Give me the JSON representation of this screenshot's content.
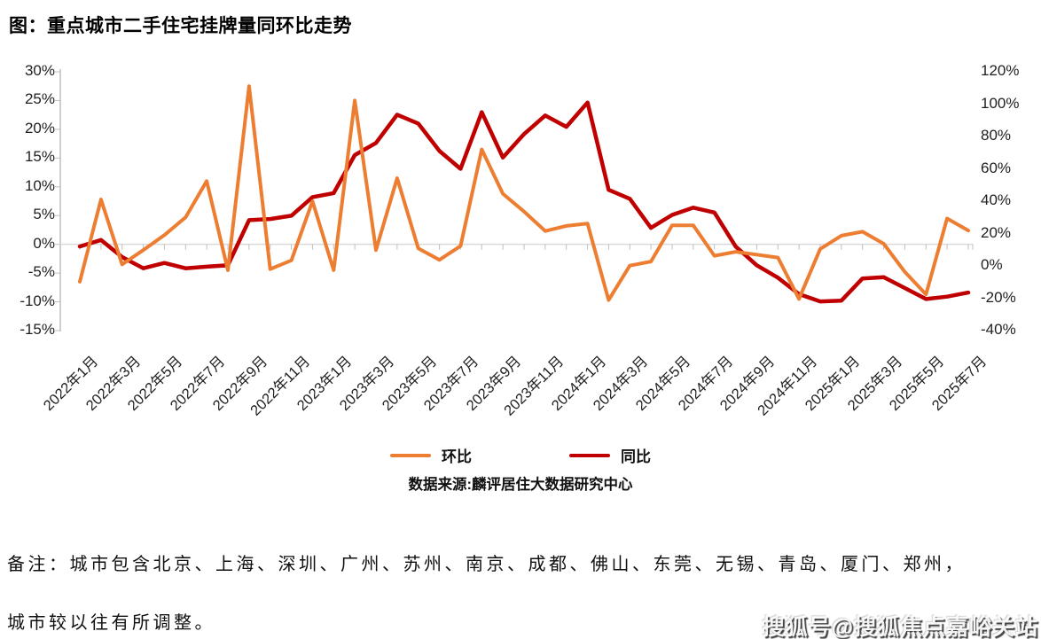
{
  "title": "图：重点城市二手住宅挂牌量同环比走势",
  "legend": [
    {
      "label": "环比",
      "color": "#ED7D31"
    },
    {
      "label": "同比",
      "color": "#C00000"
    }
  ],
  "source": "数据来源:麟评居住大数据研究中心",
  "note_line1": "备注：城市包含北京、上海、深圳、广州、苏州、南京、成都、佛山、东莞、无锡、青岛、厦门、郑州，",
  "note_line2": "城市较以往有所调整。",
  "watermark": "搜狐号@搜狐焦点嘉峪关站",
  "colors": {
    "mom_line": "#ED7D31",
    "yoy_line": "#C00000",
    "gridline": "#D9D9D9",
    "axis": "#BFBFBF",
    "text": "#1f1f1f"
  },
  "chart_data": {
    "type": "line",
    "title": "重点城市二手住宅挂牌量同环比走势",
    "x": [
      "2022年1月",
      "2022年2月",
      "2022年3月",
      "2022年4月",
      "2022年5月",
      "2022年6月",
      "2022年7月",
      "2022年8月",
      "2022年9月",
      "2022年10月",
      "2022年11月",
      "2022年12月",
      "2023年1月",
      "2023年2月",
      "2023年3月",
      "2023年4月",
      "2023年5月",
      "2023年6月",
      "2023年7月",
      "2023年8月",
      "2023年9月",
      "2023年10月",
      "2023年11月",
      "2023年12月",
      "2024年1月",
      "2024年2月",
      "2024年3月",
      "2024年4月",
      "2024年5月",
      "2024年6月",
      "2024年7月",
      "2024年8月",
      "2024年9月",
      "2024年10月",
      "2024年11月",
      "2024年12月",
      "2025年1月",
      "2025年2月",
      "2025年3月",
      "2025年4月",
      "2025年5月",
      "2025年6月",
      "2025年7月"
    ],
    "x_tick_labels": [
      "2022年1月",
      "2022年3月",
      "2022年5月",
      "2022年7月",
      "2022年9月",
      "2022年11月",
      "2023年1月",
      "2023年3月",
      "2023年5月",
      "2023年7月",
      "2023年9月",
      "2023年11月",
      "2024年1月",
      "2024年3月",
      "2024年5月",
      "2024年7月",
      "2024年9月",
      "2024年11月",
      "2025年1月",
      "2025年3月",
      "2025年5月",
      "2025年7月"
    ],
    "series": [
      {
        "name": "环比",
        "axis": "left",
        "color": "#ED7D31",
        "unit": "%",
        "values": [
          -6.5,
          7.8,
          -3.5,
          -1.0,
          1.6,
          4.7,
          11.0,
          -4.5,
          27.5,
          -4.3,
          -2.8,
          7.5,
          -4.5,
          25.0,
          -1.0,
          11.5,
          -0.7,
          -2.7,
          -0.3,
          16.5,
          8.8,
          5.7,
          2.3,
          3.2,
          3.6,
          -9.7,
          -3.7,
          -3.0,
          3.3,
          3.3,
          -2.0,
          -1.3,
          -1.8,
          -2.3,
          -9.5,
          -0.8,
          1.5,
          2.2,
          0.1,
          -4.8,
          -8.7,
          4.5,
          2.4
        ]
      },
      {
        "name": "同比",
        "axis": "right",
        "color": "#C00000",
        "unit": "%",
        "values": [
          12,
          16,
          5.5,
          -1.5,
          1.8,
          -1.5,
          -0.5,
          0.4,
          28.3,
          29,
          31,
          42.5,
          45,
          68.5,
          76,
          93.5,
          88,
          71,
          60,
          95,
          67,
          81.5,
          93,
          86,
          101,
          47,
          41.5,
          23.5,
          31.5,
          36,
          33,
          12,
          0.4,
          -7.3,
          -17.5,
          -22,
          -21.5,
          -7.8,
          -7.0,
          -13.7,
          -20.5,
          -19,
          -16.5
        ]
      }
    ],
    "left_axis": {
      "min": -15,
      "max": 30,
      "step": 5,
      "tick_labels": [
        "30%",
        "25%",
        "20%",
        "15%",
        "10%",
        "5%",
        "0%",
        "-5%",
        "-10%",
        "-15%"
      ]
    },
    "right_axis": {
      "min": -40,
      "max": 120,
      "step": 20,
      "tick_labels": [
        "120%",
        "100%",
        "80%",
        "60%",
        "40%",
        "20%",
        "0%",
        "-20%",
        "-40%"
      ]
    },
    "grid": "single horizontal gridline at left-axis 0%",
    "legend_position": "bottom-center"
  }
}
